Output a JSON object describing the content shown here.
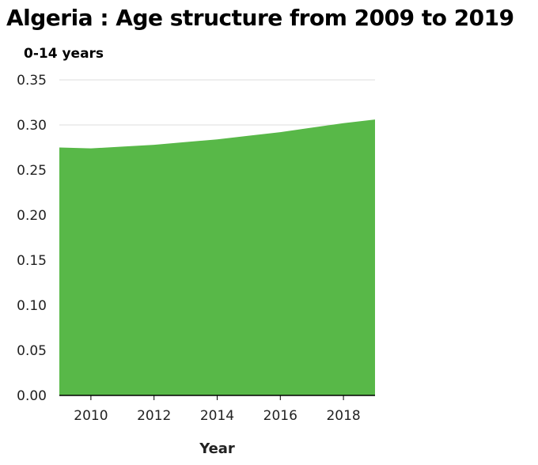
{
  "chart_data": {
    "type": "area",
    "title": "Algeria : Age structure from 2009 to 2019",
    "ylabel": "0-14 years",
    "xlabel": "Year",
    "x": [
      2009,
      2010,
      2011,
      2012,
      2013,
      2014,
      2015,
      2016,
      2017,
      2018,
      2019
    ],
    "series": [
      {
        "values": [
          0.275,
          0.274,
          0.276,
          0.278,
          0.281,
          0.284,
          0.288,
          0.292,
          0.297,
          0.302,
          0.306
        ]
      }
    ],
    "xlim": [
      2009,
      2019
    ],
    "ylim": [
      0,
      0.35
    ],
    "xticks": [
      2010,
      2012,
      2014,
      2016,
      2018
    ],
    "xtick_labels": [
      "2010",
      "2012",
      "2014",
      "2016",
      "2018"
    ],
    "yticks": [
      0,
      0.05,
      0.1,
      0.15,
      0.2,
      0.25,
      0.3,
      0.35
    ],
    "ytick_labels": [
      "0.00",
      "0.05",
      "0.10",
      "0.15",
      "0.20",
      "0.25",
      "0.30",
      "0.35"
    ],
    "grid": true,
    "fill_color": "#58b848",
    "grid_color": "#dddddd"
  }
}
